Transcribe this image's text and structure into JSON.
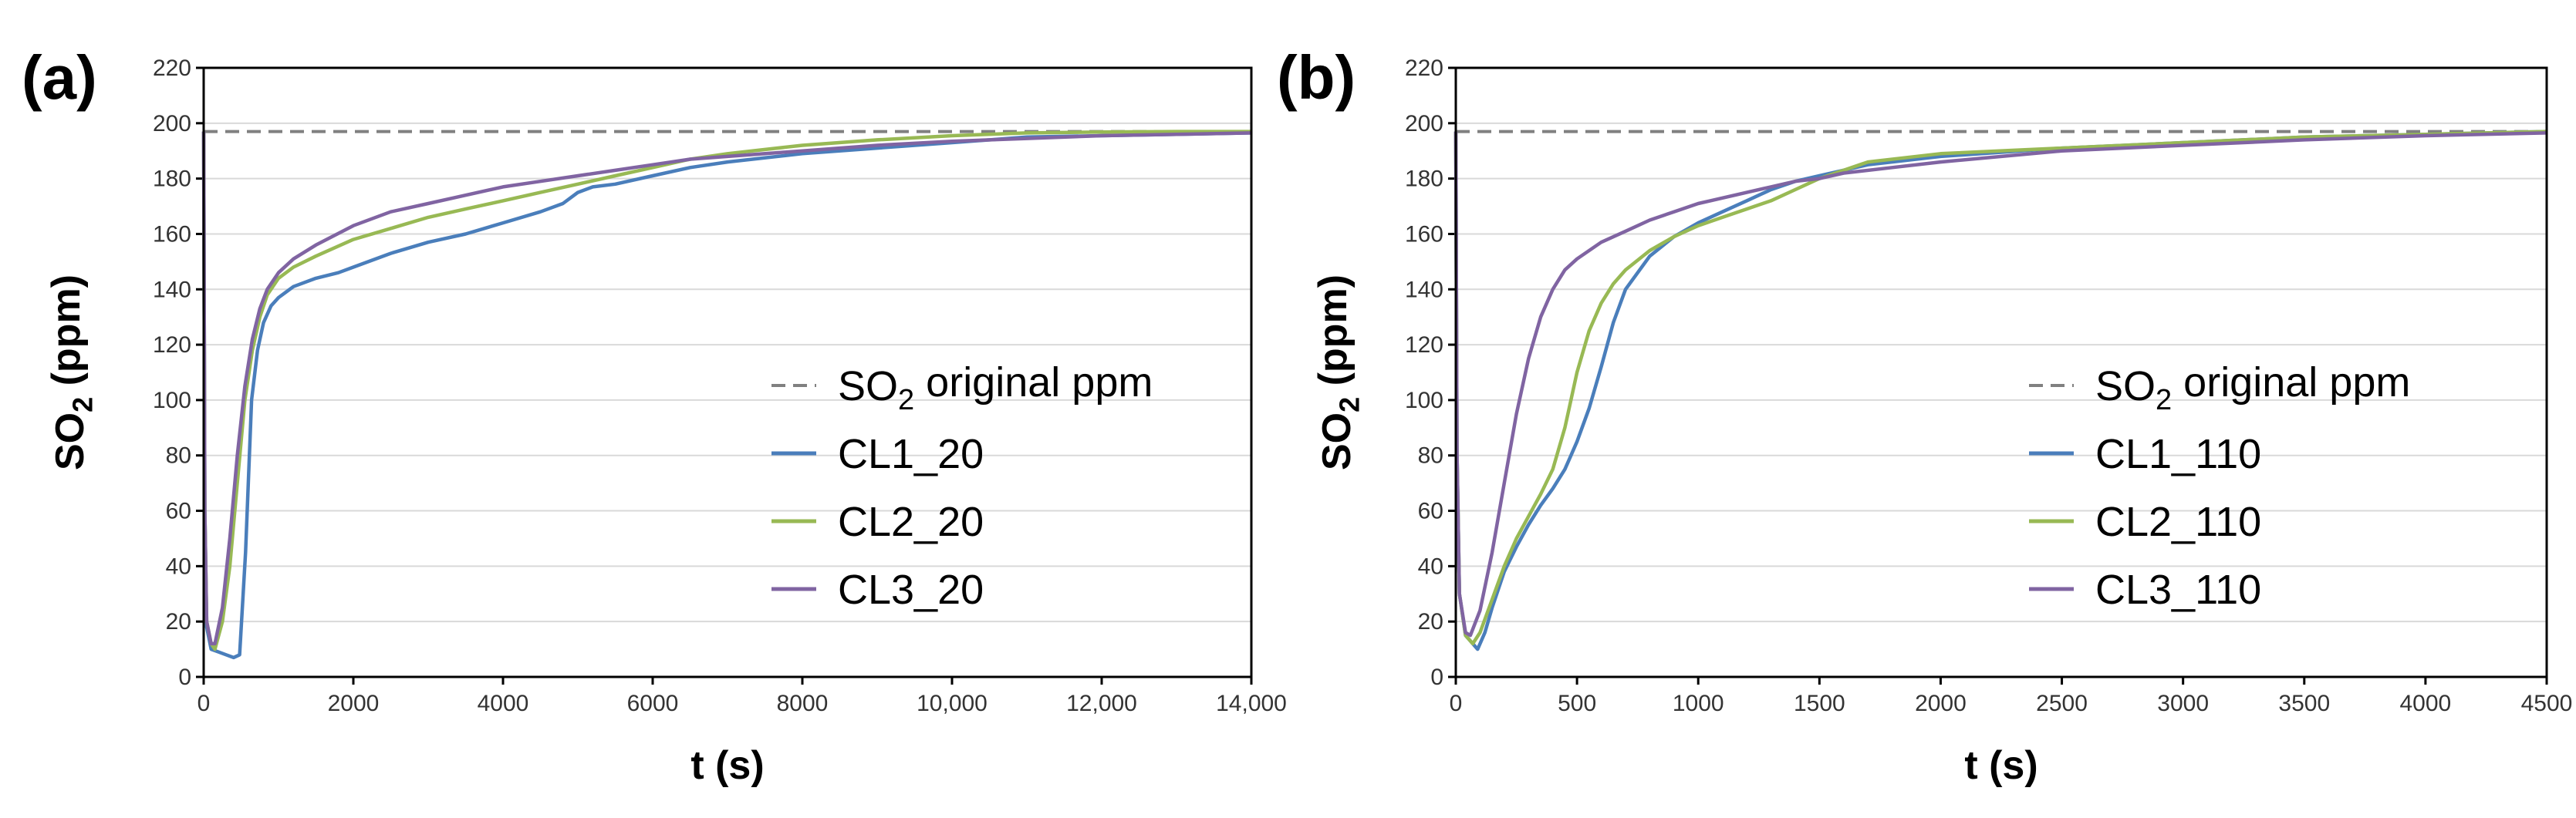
{
  "figure": {
    "panels": [
      "(a)",
      "(b)"
    ]
  },
  "chart_data": [
    {
      "type": "line",
      "panel_label": "(a)",
      "title": "",
      "xlabel": "t (s)",
      "ylabel": "SO2 (ppm)",
      "ylabel_parts": {
        "main": "SO",
        "sub": "2",
        "rest": " (ppm)"
      },
      "xlim": [
        0,
        14000
      ],
      "ylim": [
        0,
        220
      ],
      "x_ticks": [
        0,
        2000,
        4000,
        6000,
        8000,
        10000,
        12000,
        14000
      ],
      "x_tick_labels": [
        "0",
        "2000",
        "4000",
        "6000",
        "8000",
        "10,000",
        "12,000",
        "14,000"
      ],
      "y_ticks": [
        0,
        20,
        40,
        60,
        80,
        100,
        120,
        140,
        160,
        180,
        200,
        220
      ],
      "y_tick_labels": [
        "0",
        "20",
        "40",
        "60",
        "80",
        "100",
        "120",
        "140",
        "160",
        "180",
        "200",
        "220"
      ],
      "grid": "horizontal",
      "legend_position": "center-right",
      "reference": {
        "name": "SO2 original ppm",
        "name_parts": {
          "main": "SO",
          "sub": "2",
          "rest": " original ppm"
        },
        "y": 197,
        "color": "#808080",
        "style": "dashed"
      },
      "series": [
        {
          "name": "CL1_20",
          "color": "#4a7ebb",
          "points": [
            [
              0,
              197
            ],
            [
              15,
              60
            ],
            [
              40,
              18
            ],
            [
              100,
              10
            ],
            [
              200,
              9
            ],
            [
              300,
              8
            ],
            [
              400,
              7
            ],
            [
              480,
              8
            ],
            [
              560,
              45
            ],
            [
              640,
              100
            ],
            [
              720,
              118
            ],
            [
              800,
              128
            ],
            [
              900,
              134
            ],
            [
              1000,
              137
            ],
            [
              1200,
              141
            ],
            [
              1500,
              144
            ],
            [
              1800,
              146
            ],
            [
              2000,
              148
            ],
            [
              2500,
              153
            ],
            [
              3000,
              157
            ],
            [
              3500,
              160
            ],
            [
              4000,
              164
            ],
            [
              4500,
              168
            ],
            [
              4800,
              171
            ],
            [
              5000,
              175
            ],
            [
              5200,
              177
            ],
            [
              5500,
              178
            ],
            [
              6000,
              181
            ],
            [
              6500,
              184
            ],
            [
              7000,
              186
            ],
            [
              8000,
              189
            ],
            [
              9000,
              191
            ],
            [
              10000,
              193
            ],
            [
              11000,
              195
            ],
            [
              12000,
              195.5
            ],
            [
              13000,
              196
            ],
            [
              14000,
              196.5
            ]
          ]
        },
        {
          "name": "CL2_20",
          "color": "#98b954",
          "points": [
            [
              0,
              197
            ],
            [
              15,
              60
            ],
            [
              40,
              20
            ],
            [
              100,
              12
            ],
            [
              150,
              10
            ],
            [
              250,
              20
            ],
            [
              350,
              40
            ],
            [
              450,
              70
            ],
            [
              550,
              100
            ],
            [
              650,
              118
            ],
            [
              750,
              130
            ],
            [
              850,
              138
            ],
            [
              1000,
              144
            ],
            [
              1200,
              148
            ],
            [
              1500,
              152
            ],
            [
              2000,
              158
            ],
            [
              2500,
              162
            ],
            [
              3000,
              166
            ],
            [
              3500,
              169
            ],
            [
              4000,
              172
            ],
            [
              4500,
              175
            ],
            [
              5000,
              178
            ],
            [
              5500,
              181
            ],
            [
              6000,
              184
            ],
            [
              6500,
              187
            ],
            [
              7000,
              189
            ],
            [
              8000,
              192
            ],
            [
              9000,
              194
            ],
            [
              10000,
              195.5
            ],
            [
              11000,
              196.5
            ],
            [
              12000,
              196.8
            ],
            [
              13000,
              197
            ],
            [
              14000,
              197
            ]
          ]
        },
        {
          "name": "CL3_20",
          "color": "#8064a2",
          "points": [
            [
              0,
              197
            ],
            [
              15,
              60
            ],
            [
              40,
              20
            ],
            [
              100,
              12
            ],
            [
              150,
              12
            ],
            [
              250,
              25
            ],
            [
              350,
              50
            ],
            [
              450,
              80
            ],
            [
              550,
              105
            ],
            [
              650,
              122
            ],
            [
              750,
              133
            ],
            [
              850,
              140
            ],
            [
              1000,
              146
            ],
            [
              1200,
              151
            ],
            [
              1500,
              156
            ],
            [
              2000,
              163
            ],
            [
              2500,
              168
            ],
            [
              3000,
              171
            ],
            [
              3500,
              174
            ],
            [
              4000,
              177
            ],
            [
              4500,
              179
            ],
            [
              5000,
              181
            ],
            [
              5500,
              183
            ],
            [
              6000,
              185
            ],
            [
              6500,
              187
            ],
            [
              7000,
              188
            ],
            [
              8000,
              190
            ],
            [
              9000,
              192
            ],
            [
              10000,
              193.5
            ],
            [
              11000,
              194.5
            ],
            [
              12000,
              195.5
            ],
            [
              13000,
              196
            ],
            [
              14000,
              196.5
            ]
          ]
        }
      ]
    },
    {
      "type": "line",
      "panel_label": "(b)",
      "title": "",
      "xlabel": "t (s)",
      "ylabel": "SO2 (ppm)",
      "ylabel_parts": {
        "main": "SO",
        "sub": "2",
        "rest": " (ppm)"
      },
      "xlim": [
        0,
        4500
      ],
      "ylim": [
        0,
        220
      ],
      "x_ticks": [
        0,
        500,
        1000,
        1500,
        2000,
        2500,
        3000,
        3500,
        4000,
        4500
      ],
      "x_tick_labels": [
        "0",
        "500",
        "1000",
        "1500",
        "2000",
        "2500",
        "3000",
        "3500",
        "4000",
        "4500"
      ],
      "y_ticks": [
        0,
        20,
        40,
        60,
        80,
        100,
        120,
        140,
        160,
        180,
        200,
        220
      ],
      "y_tick_labels": [
        "0",
        "20",
        "40",
        "60",
        "80",
        "100",
        "120",
        "140",
        "160",
        "180",
        "200",
        "220"
      ],
      "grid": "horizontal",
      "legend_position": "center-right",
      "reference": {
        "name": "SO2 original ppm",
        "name_parts": {
          "main": "SO",
          "sub": "2",
          "rest": " original ppm"
        },
        "y": 197,
        "color": "#808080",
        "style": "dashed"
      },
      "series": [
        {
          "name": "CL1_110",
          "color": "#4a7ebb",
          "points": [
            [
              0,
              197
            ],
            [
              5,
              80
            ],
            [
              15,
              30
            ],
            [
              40,
              15
            ],
            [
              70,
              12
            ],
            [
              90,
              10
            ],
            [
              120,
              16
            ],
            [
              150,
              25
            ],
            [
              200,
              38
            ],
            [
              250,
              47
            ],
            [
              300,
              55
            ],
            [
              350,
              62
            ],
            [
              400,
              68
            ],
            [
              450,
              75
            ],
            [
              500,
              85
            ],
            [
              550,
              97
            ],
            [
              600,
              112
            ],
            [
              650,
              128
            ],
            [
              700,
              140
            ],
            [
              800,
              152
            ],
            [
              900,
              159
            ],
            [
              1000,
              164
            ],
            [
              1100,
              168
            ],
            [
              1200,
              172
            ],
            [
              1300,
              176
            ],
            [
              1400,
              179
            ],
            [
              1500,
              181
            ],
            [
              1700,
              185
            ],
            [
              2000,
              188
            ],
            [
              2500,
              191
            ],
            [
              3000,
              193
            ],
            [
              3500,
              195
            ],
            [
              4000,
              196
            ],
            [
              4500,
              197
            ]
          ]
        },
        {
          "name": "CL2_110",
          "color": "#98b954",
          "points": [
            [
              0,
              197
            ],
            [
              5,
              80
            ],
            [
              15,
              30
            ],
            [
              40,
              15
            ],
            [
              70,
              12
            ],
            [
              100,
              16
            ],
            [
              150,
              28
            ],
            [
              200,
              40
            ],
            [
              250,
              50
            ],
            [
              300,
              58
            ],
            [
              350,
              66
            ],
            [
              400,
              75
            ],
            [
              450,
              90
            ],
            [
              500,
              110
            ],
            [
              550,
              125
            ],
            [
              600,
              135
            ],
            [
              650,
              142
            ],
            [
              700,
              147
            ],
            [
              800,
              154
            ],
            [
              900,
              159
            ],
            [
              1000,
              163
            ],
            [
              1100,
              166
            ],
            [
              1200,
              169
            ],
            [
              1300,
              172
            ],
            [
              1400,
              176
            ],
            [
              1500,
              180
            ],
            [
              1700,
              186
            ],
            [
              2000,
              189
            ],
            [
              2500,
              191
            ],
            [
              3000,
              193
            ],
            [
              3500,
              195
            ],
            [
              4000,
              196
            ],
            [
              4500,
              197
            ]
          ]
        },
        {
          "name": "CL3_110",
          "color": "#8064a2",
          "points": [
            [
              0,
              197
            ],
            [
              5,
              80
            ],
            [
              15,
              30
            ],
            [
              40,
              16
            ],
            [
              60,
              15
            ],
            [
              100,
              24
            ],
            [
              150,
              45
            ],
            [
              200,
              70
            ],
            [
              250,
              95
            ],
            [
              300,
              115
            ],
            [
              350,
              130
            ],
            [
              400,
              140
            ],
            [
              450,
              147
            ],
            [
              500,
              151
            ],
            [
              600,
              157
            ],
            [
              700,
              161
            ],
            [
              800,
              165
            ],
            [
              900,
              168
            ],
            [
              1000,
              171
            ],
            [
              1050,
              172
            ],
            [
              1100,
              173
            ],
            [
              1200,
              175
            ],
            [
              1300,
              177
            ],
            [
              1400,
              179
            ],
            [
              1500,
              180
            ],
            [
              1600,
              182
            ],
            [
              1800,
              184
            ],
            [
              2000,
              186
            ],
            [
              2500,
              190
            ],
            [
              3000,
              192
            ],
            [
              3500,
              194
            ],
            [
              4000,
              195.5
            ],
            [
              4500,
              196.5
            ]
          ]
        }
      ]
    }
  ]
}
